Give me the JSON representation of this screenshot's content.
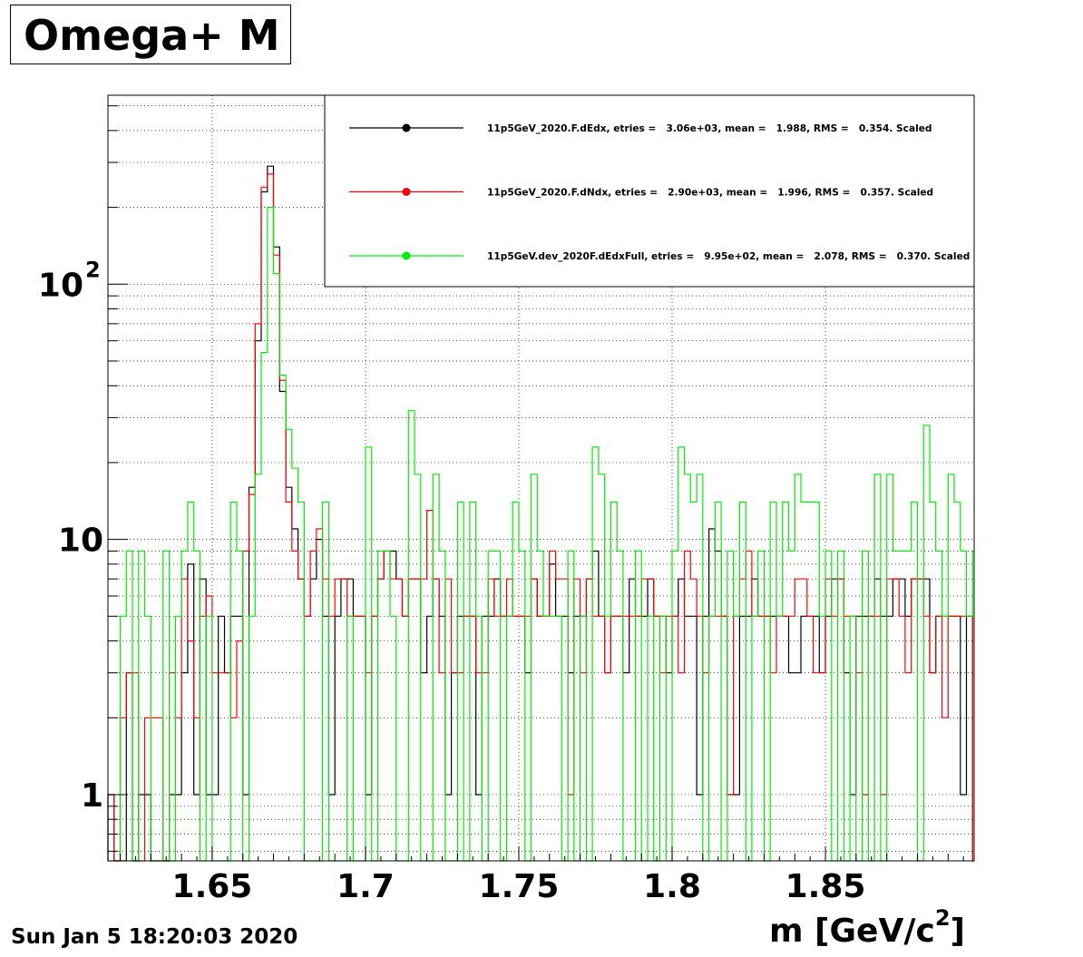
{
  "title": "Omega+ M",
  "date": "Sun Jan  5 18:20:03 2020",
  "chart_data": {
    "type": "line",
    "subtype": "step-histogram",
    "xlabel_main": "m [GeV/c",
    "xlabel_sup": "2",
    "xlabel_close": "]",
    "xlim": [
      1.616,
      1.8985
    ],
    "ylim": [
      0.55,
      550
    ],
    "yscale": "log",
    "grid": true,
    "legend_position": "top-right",
    "x_ticks": [
      {
        "value": 1.65,
        "label": "1.65"
      },
      {
        "value": 1.7,
        "label": "1.7"
      },
      {
        "value": 1.75,
        "label": "1.75"
      },
      {
        "value": 1.8,
        "label": "1.8"
      },
      {
        "value": 1.85,
        "label": "1.85"
      }
    ],
    "y_ticks": [
      {
        "value": 1,
        "label": "1",
        "exp": ""
      },
      {
        "value": 10,
        "label": "10",
        "exp": ""
      },
      {
        "value": 100,
        "label": "10",
        "exp": "2"
      }
    ],
    "bin_edges": [
      1.616,
      1.898
    ],
    "bin_width": 0.002,
    "series": [
      {
        "name": "11p5GeV_2020.F.dEdx, etries =   3.06e+03, mean =   1.988, RMS =   0.354. Scaled",
        "color": "#000000",
        "values": [
          1,
          0,
          0,
          3,
          0,
          1,
          1,
          0,
          0,
          0,
          1,
          1,
          3,
          8,
          1,
          7,
          1,
          1,
          5,
          3,
          5,
          5,
          1,
          16,
          60,
          230,
          290,
          140,
          38,
          16,
          11,
          7,
          5,
          7,
          10,
          5,
          1,
          5,
          7,
          7,
          5,
          5,
          1,
          5,
          7,
          9,
          9,
          7,
          5,
          7,
          7,
          3,
          5,
          7,
          5,
          1,
          3,
          5,
          5,
          5,
          1,
          5,
          5,
          7,
          5,
          5,
          5,
          5,
          3,
          7,
          5,
          5,
          8,
          5,
          5,
          3,
          5,
          5,
          7,
          9,
          5,
          3,
          5,
          5,
          3,
          7,
          5,
          5,
          7,
          5,
          5,
          3,
          5,
          7,
          5,
          5,
          1,
          5,
          11,
          9,
          5,
          1,
          1,
          5,
          5,
          7,
          5,
          5,
          5,
          5,
          5,
          3,
          3,
          5,
          5,
          5,
          3,
          5,
          7,
          7,
          3,
          1,
          5,
          5,
          5,
          7,
          5,
          5,
          7,
          7,
          5,
          7,
          7,
          7,
          3,
          5,
          5,
          5,
          5,
          1,
          5,
          0
        ]
      },
      {
        "name": "11p5GeV_2020.F.dNdx, etries =   2.90e+03, mean =   1.996, RMS =   0.357. Scaled",
        "color": "#ff0000",
        "values": [
          1,
          0,
          2,
          3,
          3,
          0,
          2,
          2,
          2,
          0,
          3,
          2,
          7,
          4,
          2,
          5,
          6,
          3,
          3,
          3,
          2,
          4,
          9,
          15,
          70,
          240,
          270,
          130,
          42,
          14,
          9,
          7,
          5,
          9,
          11,
          7,
          5,
          7,
          7,
          5,
          5,
          5,
          3,
          5,
          7,
          9,
          7,
          7,
          5,
          7,
          7,
          7,
          13,
          7,
          3,
          7,
          3,
          3,
          5,
          5,
          3,
          3,
          7,
          5,
          5,
          7,
          5,
          5,
          5,
          7,
          5,
          5,
          9,
          7,
          7,
          1,
          7,
          3,
          7,
          5,
          5,
          3,
          5,
          5,
          5,
          5,
          5,
          7,
          7,
          5,
          3,
          5,
          5,
          3,
          9,
          7,
          5,
          3,
          5,
          5,
          5,
          1,
          5,
          7,
          9,
          5,
          5,
          5,
          3,
          5,
          5,
          5,
          7,
          7,
          5,
          3,
          3,
          7,
          5,
          7,
          5,
          5,
          3,
          1,
          5,
          5,
          1,
          7,
          7,
          5,
          3,
          7,
          7,
          5,
          3,
          5,
          2,
          5,
          5,
          5,
          5,
          0
        ]
      },
      {
        "name": "11p5GeV.dev_2020F.dEdxFull, etries =   9.95e+02, mean =   2.078, RMS =   0.370. Scaled",
        "color": "#00ee00",
        "values": [
          0,
          0,
          5,
          9,
          0,
          9,
          5,
          0,
          0,
          9,
          0,
          5,
          9,
          14,
          9,
          0,
          5,
          0,
          0,
          0,
          14,
          9,
          0,
          5,
          18,
          54,
          200,
          110,
          44,
          27,
          19,
          14,
          0,
          0,
          0,
          14,
          0,
          0,
          0,
          5,
          0,
          0,
          23,
          0,
          9,
          9,
          5,
          0,
          0,
          32,
          18,
          0,
          0,
          18,
          9,
          0,
          0,
          14,
          0,
          14,
          5,
          0,
          9,
          9,
          0,
          5,
          14,
          9,
          0,
          18,
          9,
          5,
          5,
          5,
          0,
          9,
          0,
          5,
          0,
          23,
          18,
          5,
          14,
          9,
          0,
          0,
          9,
          0,
          5,
          0,
          5,
          0,
          9,
          23,
          18,
          14,
          18,
          0,
          5,
          14,
          0,
          9,
          5,
          14,
          0,
          5,
          9,
          0,
          14,
          5,
          14,
          9,
          18,
          14,
          14,
          14,
          5,
          9,
          0,
          9,
          0,
          5,
          0,
          9,
          0,
          18,
          0,
          18,
          9,
          9,
          9,
          14,
          0,
          28,
          14,
          9,
          5,
          18,
          14,
          9,
          5,
          9
        ]
      }
    ]
  }
}
